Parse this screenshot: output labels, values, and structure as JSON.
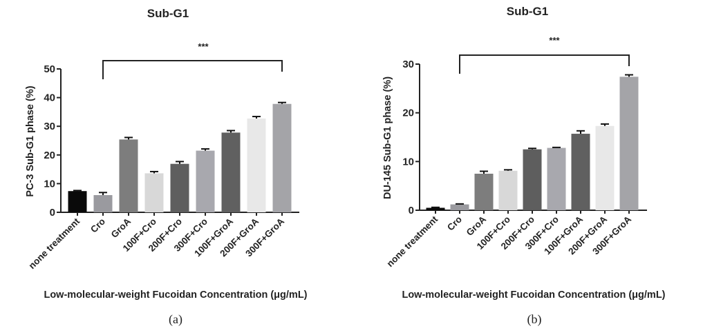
{
  "chart_data": [
    {
      "type": "bar",
      "title": "Sub-G1",
      "panel_label": "(a)",
      "xlabel": "Low-molecular-weight Fucoidan Concentration (μg/mL)",
      "ylabel": "PC-3 Sub-G1 phase (%)",
      "ylim": [
        0,
        50
      ],
      "yticks": [
        "0",
        "10",
        "20",
        "30",
        "40",
        "50"
      ],
      "categories": [
        "none treatment",
        "Cro",
        "GroA",
        "100F+Cro",
        "200F+Cro",
        "300F+Cro",
        "100F+GroA",
        "200F+GroA",
        "300F+GroA"
      ],
      "values": [
        7.4,
        6.0,
        25.4,
        13.6,
        16.9,
        21.5,
        27.8,
        32.7,
        37.8
      ],
      "errors": [
        0.2,
        0.9,
        0.7,
        0.6,
        0.8,
        0.6,
        0.7,
        0.7,
        0.5
      ],
      "bar_colors": [
        "#0a0a0a",
        "#9a9a9f",
        "#7d7d7d",
        "#d8d8d8",
        "#5e5e5e",
        "#a8a8ae",
        "#606060",
        "#e8e8e8",
        "#a4a4a8"
      ],
      "annotation": {
        "text": "***",
        "from": "Cro",
        "to": "300F+GroA"
      },
      "grid": false
    },
    {
      "type": "bar",
      "title": "Sub-G1",
      "panel_label": "(b)",
      "xlabel": "Low-molecular-weight Fucoidan Concentration (μg/mL)",
      "ylabel": "DU-145 Sub-G1 phase (%)",
      "ylim": [
        0,
        30
      ],
      "yticks": [
        "0",
        "10",
        "20",
        "30"
      ],
      "categories": [
        "none treatment",
        "Cro",
        "GroA",
        "100F+Cro",
        "200F+Cro",
        "300F+Cro",
        "100F+GroA",
        "200F+GroA",
        "300F+GroA"
      ],
      "values": [
        0.5,
        1.2,
        7.5,
        8.1,
        12.5,
        12.8,
        15.7,
        17.3,
        27.4
      ],
      "errors": [
        0.1,
        0.1,
        0.5,
        0.2,
        0.2,
        0.1,
        0.6,
        0.4,
        0.4
      ],
      "bar_colors": [
        "#0a0a0a",
        "#9a9a9f",
        "#7d7d7d",
        "#d8d8d8",
        "#5e5e5e",
        "#a8a8ae",
        "#606060",
        "#e8e8e8",
        "#a4a4a8"
      ],
      "annotation": {
        "text": "***",
        "from": "Cro",
        "to": "300F+GroA"
      },
      "grid": false
    }
  ]
}
